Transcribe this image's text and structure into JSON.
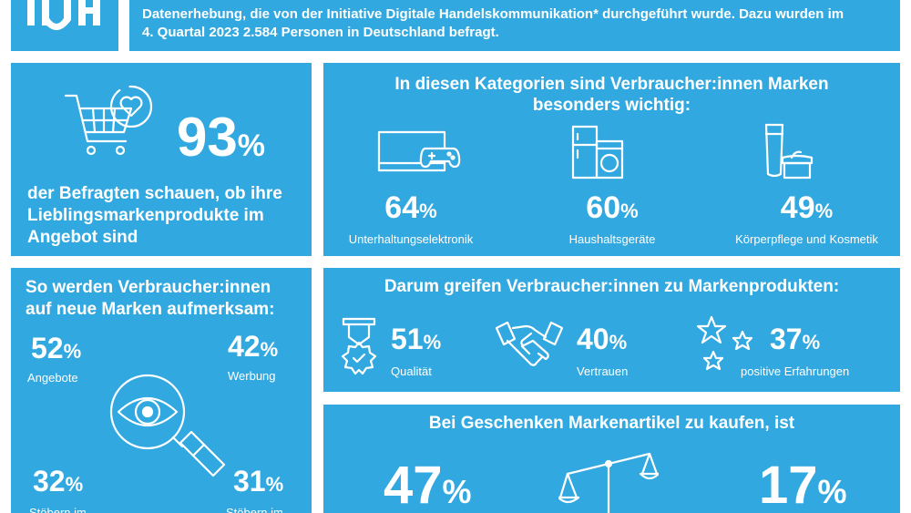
{
  "header": {
    "text_line1": "Datenerhebung, die von der Initiative Digitale Handelskommunikation* durchgeführt wurde. Dazu wurden im",
    "text_line2": "4. Quartal 2023 2.584 Personen in Deutschland befragt."
  },
  "favorite": {
    "value": "93",
    "unit": "%",
    "caption_line1": "der Befragten schauen, ob ihre",
    "caption_line2": "Lieblingsmarkenprodukte im",
    "caption_line3": "Angebot sind"
  },
  "categories": {
    "title_line1": "In diesen Kategorien sind Verbraucher:innen Marken",
    "title_line2": "besonders wichtig:",
    "items": [
      {
        "value": "64",
        "unit": "%",
        "label": "Unterhaltungselektronik"
      },
      {
        "value": "60",
        "unit": "%",
        "label": "Haushaltsgeräte"
      },
      {
        "value": "49",
        "unit": "%",
        "label": "Körperpflege und Kosmetik"
      }
    ]
  },
  "attention": {
    "title_line1": "So werden Verbraucher:innen",
    "title_line2": "auf neue Marken aufmerksam:",
    "items": [
      {
        "value": "52",
        "unit": "%",
        "label": "Angebote"
      },
      {
        "value": "42",
        "unit": "%",
        "label": "Werbung"
      },
      {
        "value": "32",
        "unit": "%",
        "label": "Stöbern im"
      },
      {
        "value": "31",
        "unit": "%",
        "label": "Stöbern im"
      }
    ]
  },
  "reasons": {
    "title": "Darum greifen Verbraucher:innen zu Markenprodukten:",
    "items": [
      {
        "value": "51",
        "unit": "%",
        "label": "Qualität"
      },
      {
        "value": "40",
        "unit": "%",
        "label": "Vertrauen"
      },
      {
        "value": "37",
        "unit": "%",
        "label": "positive Erfahrungen"
      }
    ]
  },
  "gifts": {
    "title": "Bei Geschenken Markenartikel zu kaufen, ist",
    "left": {
      "value": "47",
      "unit": "%"
    },
    "right": {
      "value": "17",
      "unit": "%"
    }
  },
  "colors": {
    "panel": "#32a8e0",
    "background": "#ffffff",
    "text": "#ffffff"
  }
}
